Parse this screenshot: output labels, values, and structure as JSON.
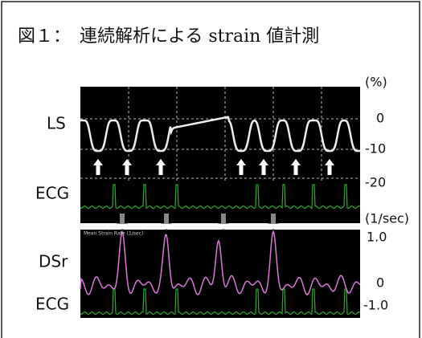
{
  "figure": {
    "title": "図１：　連続解析による strain 値計測",
    "labels": {
      "ls": "LS",
      "ecg_top": "ECG",
      "dsr": "DSr",
      "ecg_bottom": "ECG"
    },
    "ls_axis": {
      "unit": "(%)",
      "ticks": [
        "0",
        "-10",
        "-20"
      ]
    },
    "dsr_axis": {
      "unit": "(1/sec)",
      "ticks": [
        "1.0",
        "0",
        "-1.0"
      ]
    },
    "panel_caption": "Mean Strain Rate (1/sec)"
  }
}
